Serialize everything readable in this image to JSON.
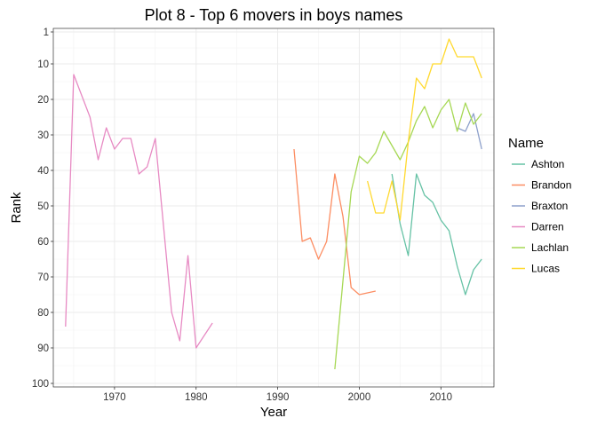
{
  "chart_data": {
    "type": "line",
    "title": "Plot 8 - Top 6 movers in boys names",
    "xlabel": "Year",
    "ylabel": "Rank",
    "xlim": [
      1962.5,
      2016.5
    ],
    "ylim": [
      101,
      0
    ],
    "y_reversed": true,
    "x_ticks": [
      1970,
      1980,
      1990,
      2000,
      2010
    ],
    "y_ticks": [
      1,
      10,
      20,
      30,
      40,
      50,
      60,
      70,
      80,
      90,
      100
    ],
    "grid": true,
    "legend": {
      "title": "Name",
      "position": "right"
    },
    "series": [
      {
        "name": "Ashton",
        "color": "#66C2A5",
        "x": [
          2004,
          2005,
          2006,
          2007,
          2008,
          2009,
          2010,
          2011,
          2012,
          2013,
          2014,
          2015
        ],
        "y": [
          41,
          55,
          64,
          41,
          47,
          49,
          54,
          57,
          67,
          75,
          68,
          65
        ]
      },
      {
        "name": "Brandon",
        "color": "#FC8D62",
        "x": [
          1992,
          1993,
          1994,
          1995,
          1996,
          1997,
          1998,
          1999,
          2000,
          2002
        ],
        "y": [
          34,
          60,
          59,
          65,
          60,
          41,
          53,
          73,
          75,
          74
        ]
      },
      {
        "name": "Braxton",
        "color": "#8DA0CB",
        "x": [
          2012,
          2013,
          2014,
          2015
        ],
        "y": [
          28,
          29,
          24,
          34
        ]
      },
      {
        "name": "Darren",
        "color": "#E78AC3",
        "x": [
          1964,
          1965,
          1967,
          1968,
          1969,
          1970,
          1971,
          1972,
          1973,
          1974,
          1975,
          1977,
          1978,
          1979,
          1980,
          1982
        ],
        "y": [
          84,
          13,
          25,
          37,
          28,
          34,
          31,
          31,
          41,
          39,
          31,
          80,
          88,
          64,
          90,
          83
        ]
      },
      {
        "name": "Lachlan",
        "color": "#A6D854",
        "x": [
          1997,
          1999,
          2000,
          2001,
          2002,
          2003,
          2005,
          2006,
          2007,
          2008,
          2009,
          2010,
          2011,
          2012,
          2013,
          2014,
          2015
        ],
        "y": [
          96,
          46,
          36,
          38,
          35,
          29,
          37,
          32,
          26,
          22,
          28,
          23,
          20,
          29,
          21,
          27,
          24
        ]
      },
      {
        "name": "Lucas",
        "color": "#FFD92F",
        "x": [
          2001,
          2002,
          2003,
          2004,
          2005,
          2006,
          2007,
          2008,
          2009,
          2010,
          2011,
          2012,
          2013,
          2014,
          2015
        ],
        "y": [
          43,
          52,
          52,
          43,
          54,
          32,
          14,
          17,
          10,
          10,
          3,
          8,
          8,
          8,
          14
        ]
      }
    ]
  }
}
